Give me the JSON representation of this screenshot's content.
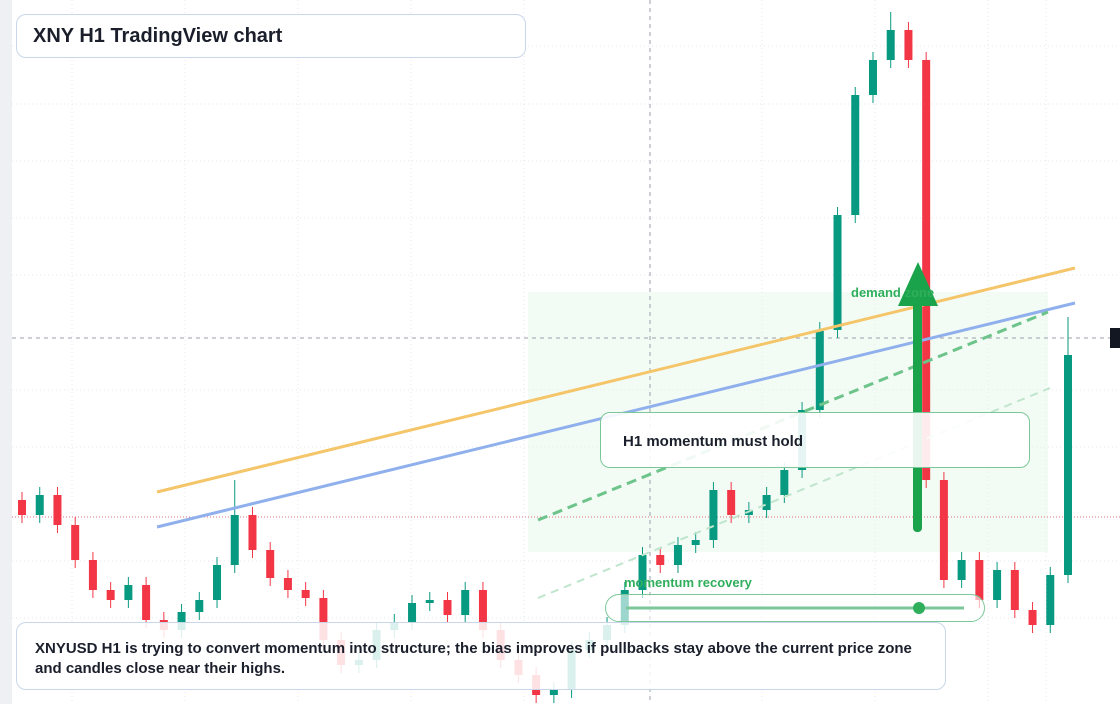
{
  "header": {
    "title": "XNY H1 TradingView chart"
  },
  "chart_data": {
    "type": "candlestick",
    "up_color": "#089981",
    "down_color": "#f23645",
    "ylim": [
      0,
      704
    ],
    "open": [
      204,
      189,
      209,
      179,
      144,
      114,
      104,
      119,
      84,
      74,
      92,
      104,
      139,
      189,
      154,
      126,
      114,
      106,
      64,
      39,
      44,
      74,
      82,
      101,
      104,
      89,
      114,
      74,
      44,
      29,
      9,
      14,
      54,
      64,
      79,
      114,
      149,
      139,
      159,
      164,
      214,
      189,
      194,
      209,
      234,
      294,
      374,
      489,
      609,
      644,
      674,
      644,
      224,
      124,
      144,
      104,
      134,
      94,
      79,
      129
    ],
    "high": [
      212,
      217,
      217,
      187,
      152,
      122,
      127,
      127,
      92,
      100,
      112,
      147,
      224,
      197,
      162,
      134,
      122,
      114,
      72,
      52,
      82,
      90,
      109,
      112,
      112,
      122,
      122,
      82,
      52,
      37,
      22,
      62,
      72,
      87,
      122,
      157,
      157,
      167,
      172,
      222,
      222,
      202,
      217,
      242,
      302,
      382,
      497,
      617,
      652,
      692,
      682,
      652,
      232,
      152,
      152,
      142,
      142,
      102,
      137,
      387
    ],
    "low": [
      181,
      181,
      171,
      136,
      106,
      96,
      96,
      76,
      66,
      66,
      84,
      96,
      131,
      146,
      118,
      106,
      98,
      56,
      31,
      31,
      36,
      66,
      74,
      93,
      81,
      81,
      66,
      36,
      21,
      1,
      1,
      6,
      46,
      56,
      71,
      106,
      131,
      131,
      151,
      156,
      181,
      181,
      186,
      201,
      226,
      286,
      366,
      481,
      601,
      636,
      636,
      216,
      116,
      116,
      96,
      96,
      86,
      71,
      71,
      121
    ],
    "close": [
      189,
      209,
      179,
      144,
      114,
      104,
      119,
      84,
      74,
      92,
      104,
      139,
      189,
      154,
      126,
      114,
      106,
      64,
      39,
      44,
      74,
      82,
      101,
      104,
      89,
      114,
      74,
      44,
      29,
      9,
      14,
      54,
      64,
      79,
      114,
      149,
      139,
      159,
      164,
      214,
      189,
      194,
      209,
      234,
      294,
      374,
      489,
      609,
      644,
      674,
      644,
      224,
      124,
      144,
      104,
      134,
      94,
      79,
      129,
      349
    ]
  },
  "annotations": {
    "demand_zone": "demand zone",
    "callout": "H1 momentum must hold",
    "recovery": "momentum recovery"
  },
  "caption": "XNYUSD H1 is trying to convert momentum into structure; the bias improves if pullbacks stay above the current price zone and candles close near their highs."
}
